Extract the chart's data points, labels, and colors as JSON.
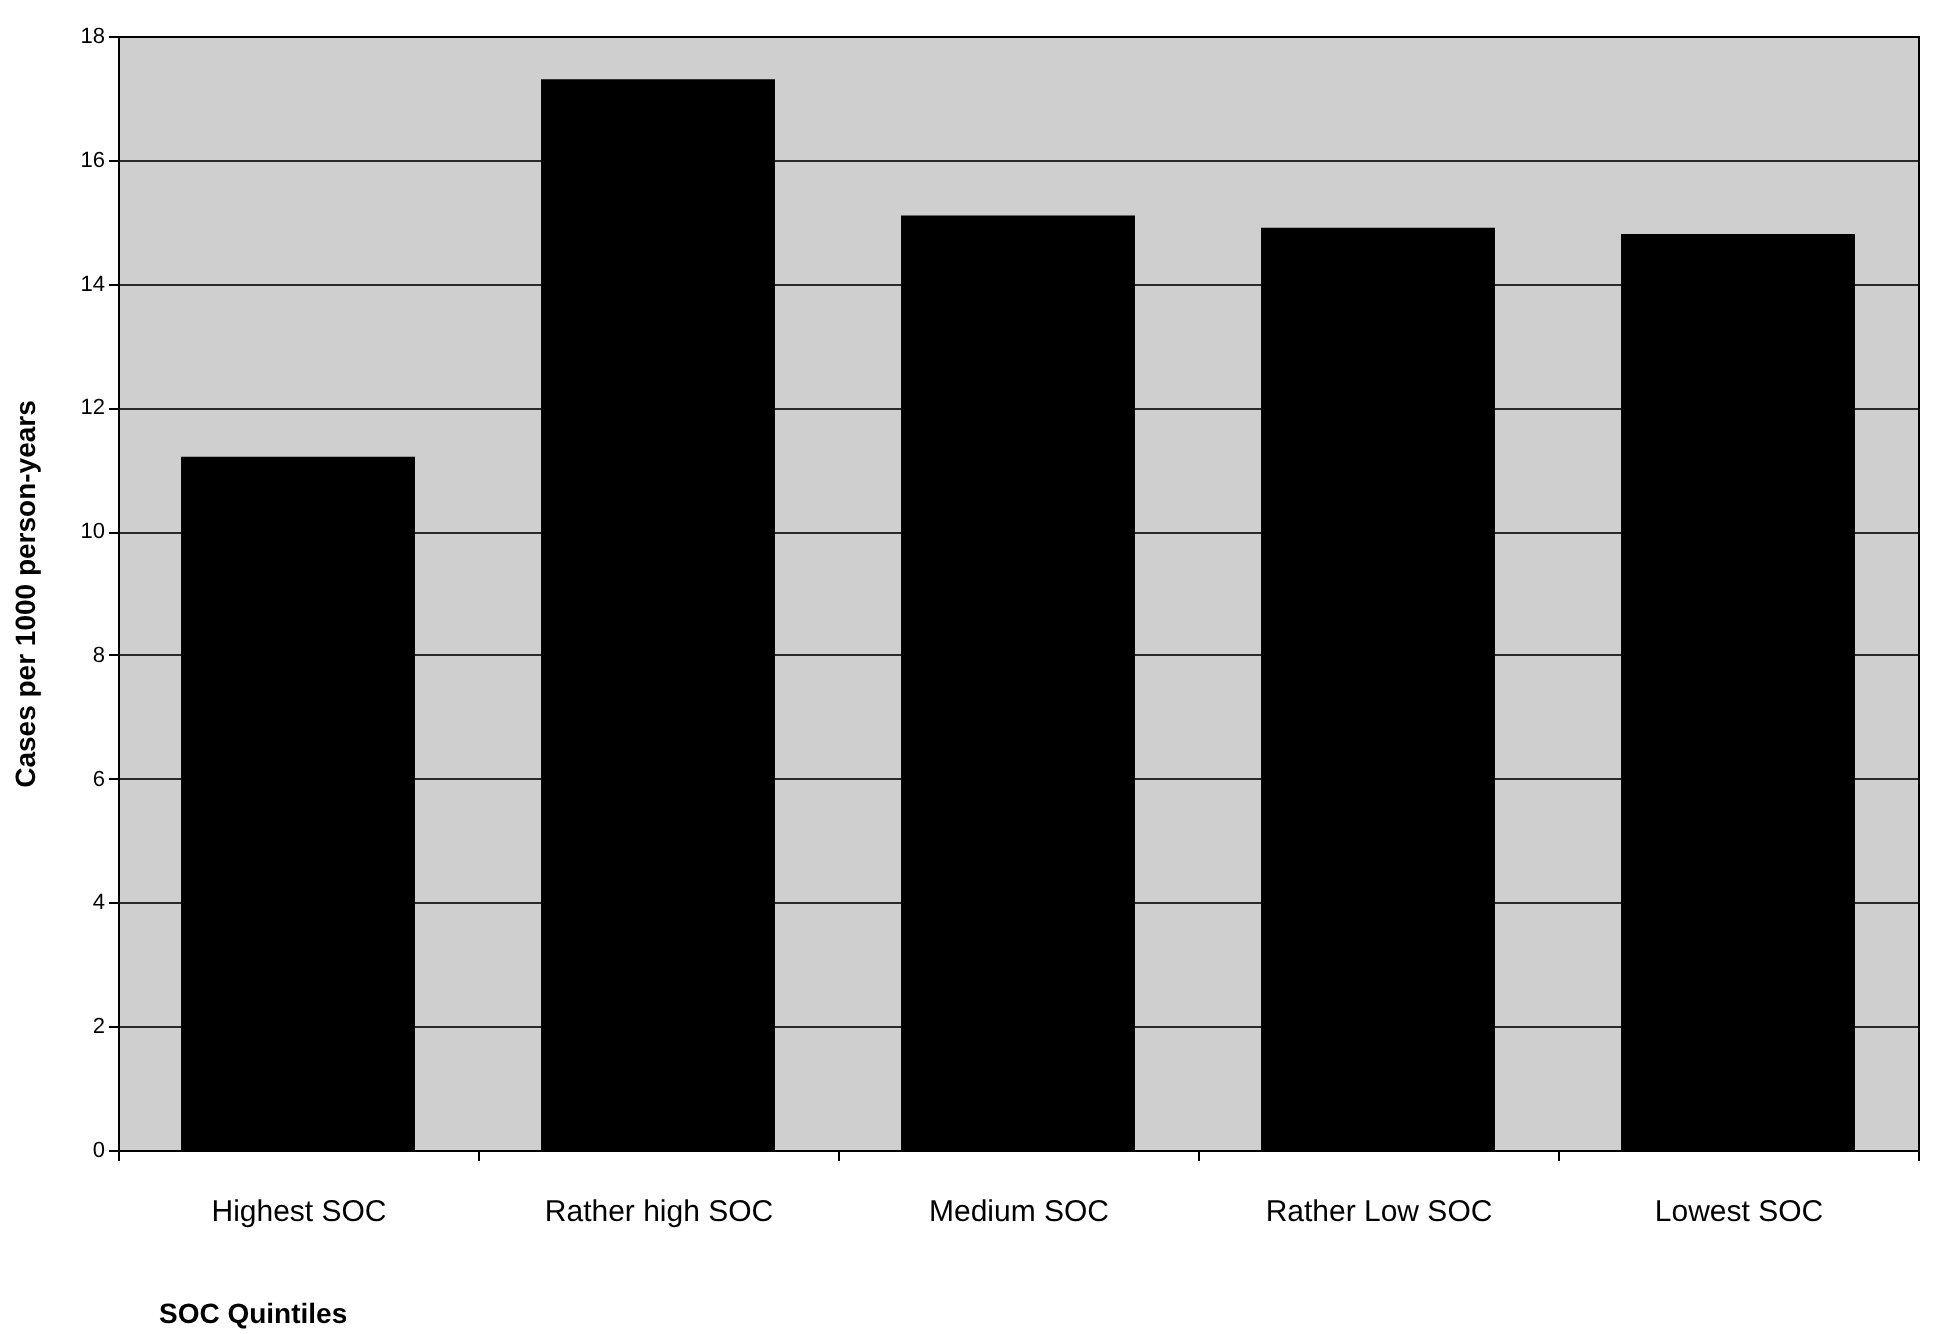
{
  "chart_data": {
    "type": "bar",
    "xlabel": "SOC Quintiles",
    "ylabel": "Cases per 1000 person-years",
    "categories": [
      "Highest SOC",
      "Rather high SOC",
      "Medium SOC",
      "Rather Low SOC",
      "Lowest SOC"
    ],
    "values": [
      11.2,
      17.3,
      15.1,
      14.9,
      14.8
    ],
    "color": "#000000",
    "ylim": [
      0,
      18
    ],
    "yticks": [
      0,
      2,
      4,
      6,
      8,
      10,
      12,
      14,
      16,
      18
    ],
    "grid": "y"
  }
}
